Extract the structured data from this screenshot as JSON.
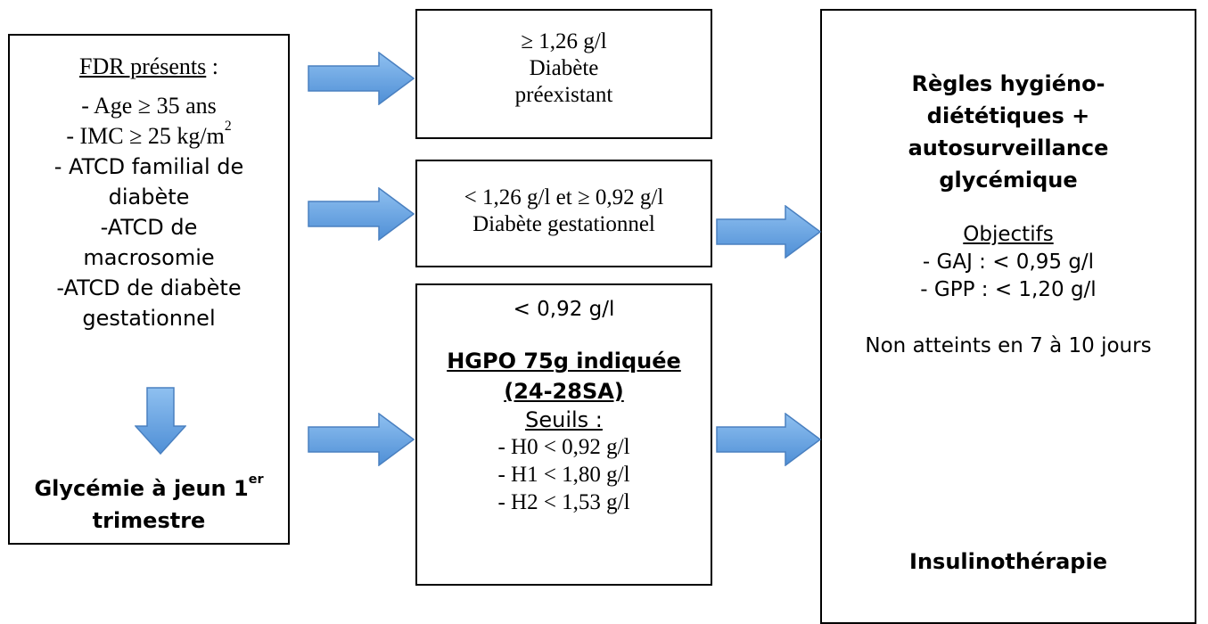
{
  "left_box": {
    "title": "FDR présents",
    "title_suffix": " :",
    "items": [
      "- Age ≥ 35 ans",
      "- IMC ≥ 25 kg/m",
      "- ATCD familial de",
      "diabète",
      "-ATCD de",
      "macrosomie",
      "-ATCD de diabète",
      "gestationnel"
    ],
    "imc_sup": "2",
    "conclusion_line1": "Glycémie à jeun 1",
    "conclusion_sup": "er",
    "conclusion_line2": "trimestre"
  },
  "top_box": {
    "line1": "≥ 1,26 g/l",
    "line2": "Diabète",
    "line3": "préexistant"
  },
  "mid_box": {
    "line1": "< 1,26 g/l et ≥ 0,92 g/l",
    "line2": "Diabète gestationnel"
  },
  "bot_box": {
    "line1": "< 0,92 g/l",
    "hgpo1": "HGPO 75g indiquée",
    "hgpo2": "(24-28SA)",
    "seuils": "Seuils :",
    "h0": "- H0 < 0,92 g/l",
    "h1": "- H1 < 1,80 g/l",
    "h2": "- H2 < 1,53 g/l"
  },
  "right_box": {
    "title1": "Règles hygiéno-",
    "title2": "diététiques +",
    "title3": "autosurveillance",
    "title4": "glycémique",
    "objectifs": "Objectifs",
    "gaj": "- GAJ : < 0,95 g/l",
    "gpp": "- GPP : < 1,20 g/l",
    "non_atteints": "Non atteints en 7 à 10 jours",
    "insulin": "Insulinothérapie"
  },
  "colors": {
    "arrow_fill": "#6fa8e6",
    "arrow_stroke": "#4a80c0"
  }
}
